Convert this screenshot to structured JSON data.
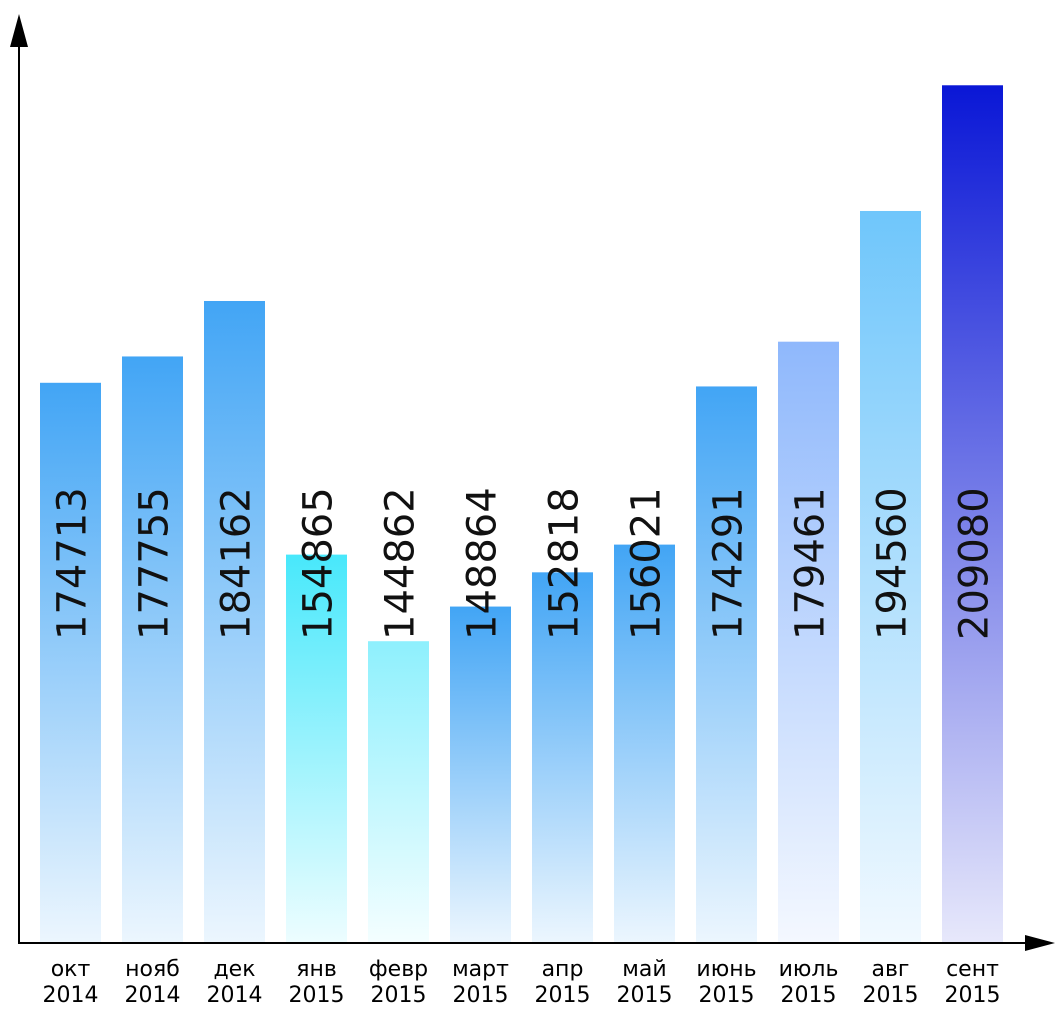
{
  "chart_data": {
    "type": "bar",
    "categories": [
      {
        "month": "окт",
        "year": "2014"
      },
      {
        "month": "нояб",
        "year": "2014"
      },
      {
        "month": "дек",
        "year": "2014"
      },
      {
        "month": "янв",
        "year": "2015"
      },
      {
        "month": "февр",
        "year": "2015"
      },
      {
        "month": "март",
        "year": "2015"
      },
      {
        "month": "апр",
        "year": "2015"
      },
      {
        "month": "май",
        "year": "2015"
      },
      {
        "month": "июнь",
        "year": "2015"
      },
      {
        "month": "июль",
        "year": "2015"
      },
      {
        "month": "авг",
        "year": "2015"
      },
      {
        "month": "сент",
        "year": "2015"
      }
    ],
    "values": [
      174713,
      177755,
      184162,
      154865,
      144862,
      148864,
      152818,
      156021,
      174291,
      179461,
      194560,
      209080
    ],
    "bar_colors": [
      "#42a5f5",
      "#42a5f5",
      "#42a5f5",
      "#48e8fb",
      "#8ef0fd",
      "#42a5f5",
      "#42a5f5",
      "#42a5f5",
      "#42a5f5",
      "#8fb8fc",
      "#6fc6fb",
      "#0a17d6"
    ],
    "label_color": "#111111",
    "axis_color": "#000000",
    "ylim": [
      110000,
      212000
    ],
    "grid": false,
    "legend": "none",
    "title": "",
    "xlabel": "",
    "ylabel": ""
  }
}
